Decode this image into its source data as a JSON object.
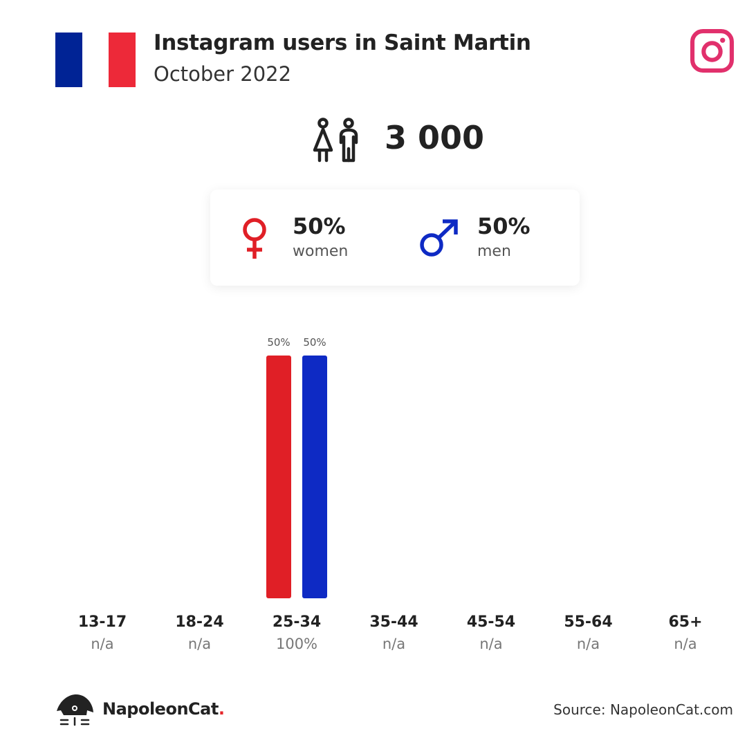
{
  "header": {
    "title": "Instagram users in Saint Martin",
    "subtitle": "October 2022",
    "flag_colors": [
      "#002395",
      "#ffffff",
      "#ED2939"
    ],
    "platform_icon": "instagram-icon",
    "platform_color": "#E1306C"
  },
  "summary": {
    "total_users": "3 000",
    "users_icon": "users-icon"
  },
  "gender": {
    "women": {
      "percent": "50%",
      "label": "women",
      "icon": "female-icon",
      "color": "#E01F26"
    },
    "men": {
      "percent": "50%",
      "label": "men",
      "icon": "male-icon",
      "color": "#0E2AC4"
    }
  },
  "chart_data": {
    "type": "bar",
    "categories": [
      "13-17",
      "18-24",
      "25-34",
      "35-44",
      "45-54",
      "55-64",
      "65+"
    ],
    "category_totals": [
      "n/a",
      "n/a",
      "100%",
      "n/a",
      "n/a",
      "n/a",
      "n/a"
    ],
    "series": [
      {
        "name": "women",
        "color": "#E01F26",
        "values": [
          null,
          null,
          50,
          null,
          null,
          null,
          null
        ],
        "labels": [
          "",
          "",
          "50%",
          "",
          "",
          "",
          ""
        ]
      },
      {
        "name": "men",
        "color": "#0E2AC4",
        "values": [
          null,
          null,
          50,
          null,
          null,
          null,
          null
        ],
        "labels": [
          "",
          "",
          "50%",
          "",
          "",
          "",
          ""
        ]
      }
    ],
    "ylim": [
      0,
      50
    ],
    "title": "",
    "xlabel": "",
    "ylabel": "",
    "grid": false,
    "legend": "none"
  },
  "footer": {
    "brand_name": "NapoleonCat",
    "brand_dot": ".",
    "brand_icon": "napoleoncat-logo-icon",
    "source": "Source: NapoleonCat.com"
  }
}
